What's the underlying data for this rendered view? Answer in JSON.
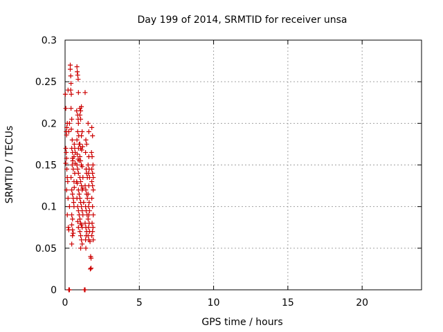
{
  "chart_data": {
    "type": "scatter",
    "title": "Day 199 of 2014, SRMTID for receiver unsa",
    "xlabel": "GPS time / hours",
    "ylabel": "SRMTID / TECUs",
    "xlim": [
      0,
      24
    ],
    "ylim": [
      0,
      0.3
    ],
    "xticks": [
      "0",
      "5",
      "10",
      "15",
      "20"
    ],
    "yticks": [
      "0",
      "0.05",
      "0.1",
      "0.15",
      "0.2",
      "0.25",
      "0.3"
    ],
    "xtick_values": [
      0,
      5,
      10,
      15,
      20
    ],
    "ytick_values": [
      0,
      0.05,
      0.1,
      0.15,
      0.2,
      0.25,
      0.3
    ],
    "grid": true,
    "marker": "plus",
    "marker_color": "#cc0000",
    "points": [
      [
        0.02,
        0.235
      ],
      [
        0.05,
        0.218
      ],
      [
        0.08,
        0.19
      ],
      [
        0.1,
        0.186
      ],
      [
        0.12,
        0.195
      ],
      [
        0.15,
        0.2
      ],
      [
        0.05,
        0.17
      ],
      [
        0.08,
        0.165
      ],
      [
        0.1,
        0.158
      ],
      [
        0.05,
        0.152
      ],
      [
        0.12,
        0.145
      ],
      [
        0.15,
        0.135
      ],
      [
        0.18,
        0.13
      ],
      [
        0.1,
        0.12
      ],
      [
        0.2,
        0.11
      ],
      [
        0.15,
        0.09
      ],
      [
        0.22,
        0.075
      ],
      [
        0.25,
        0.072
      ],
      [
        0.3,
        0.1
      ],
      [
        0.25,
        0.19
      ],
      [
        0.3,
        0.2
      ],
      [
        0.2,
        0.24
      ],
      [
        0.35,
        0.27
      ],
      [
        0.35,
        0.265
      ],
      [
        0.38,
        0.257
      ],
      [
        0.4,
        0.248
      ],
      [
        0.38,
        0.24
      ],
      [
        0.42,
        0.235
      ],
      [
        0.4,
        0.218
      ],
      [
        0.45,
        0.205
      ],
      [
        0.42,
        0.193
      ],
      [
        0.48,
        0.18
      ],
      [
        0.45,
        0.17
      ],
      [
        0.5,
        0.165
      ],
      [
        0.5,
        0.158
      ],
      [
        0.52,
        0.155
      ],
      [
        0.48,
        0.15
      ],
      [
        0.55,
        0.145
      ],
      [
        0.4,
        0.135
      ],
      [
        0.45,
        0.12
      ],
      [
        0.5,
        0.115
      ],
      [
        0.55,
        0.11
      ],
      [
        0.58,
        0.105
      ],
      [
        0.6,
        0.1
      ],
      [
        0.45,
        0.09
      ],
      [
        0.5,
        0.085
      ],
      [
        0.45,
        0.078
      ],
      [
        0.5,
        0.072
      ],
      [
        0.55,
        0.068
      ],
      [
        0.5,
        0.065
      ],
      [
        0.45,
        0.055
      ],
      [
        0.6,
        0.13
      ],
      [
        0.62,
        0.123
      ],
      [
        0.65,
        0.14
      ],
      [
        0.68,
        0.152
      ],
      [
        0.62,
        0.175
      ],
      [
        0.65,
        0.17
      ],
      [
        0.68,
        0.165
      ],
      [
        0.6,
        0.16
      ],
      [
        0.8,
        0.268
      ],
      [
        0.82,
        0.262
      ],
      [
        0.85,
        0.258
      ],
      [
        0.88,
        0.253
      ],
      [
        0.9,
        0.237
      ],
      [
        0.78,
        0.215
      ],
      [
        0.85,
        0.21
      ],
      [
        0.88,
        0.205
      ],
      [
        0.9,
        0.2
      ],
      [
        0.85,
        0.19
      ],
      [
        0.8,
        0.18
      ],
      [
        0.92,
        0.185
      ],
      [
        0.95,
        0.175
      ],
      [
        0.9,
        0.17
      ],
      [
        0.82,
        0.163
      ],
      [
        0.88,
        0.157
      ],
      [
        0.95,
        0.155
      ],
      [
        0.8,
        0.15
      ],
      [
        0.85,
        0.145
      ],
      [
        0.9,
        0.14
      ],
      [
        0.78,
        0.13
      ],
      [
        0.82,
        0.128
      ],
      [
        0.9,
        0.12
      ],
      [
        0.95,
        0.115
      ],
      [
        0.8,
        0.11
      ],
      [
        0.85,
        0.1
      ],
      [
        0.9,
        0.095
      ],
      [
        0.95,
        0.09
      ],
      [
        0.85,
        0.082
      ],
      [
        0.9,
        0.075
      ],
      [
        1.0,
        0.218
      ],
      [
        1.05,
        0.215
      ],
      [
        1.1,
        0.22
      ],
      [
        1.0,
        0.21
      ],
      [
        1.05,
        0.205
      ],
      [
        1.1,
        0.185
      ],
      [
        1.15,
        0.19
      ],
      [
        1.0,
        0.175
      ],
      [
        1.05,
        0.17
      ],
      [
        1.12,
        0.168
      ],
      [
        1.18,
        0.172
      ],
      [
        1.0,
        0.16
      ],
      [
        1.05,
        0.155
      ],
      [
        1.1,
        0.15
      ],
      [
        1.15,
        0.148
      ],
      [
        1.0,
        0.135
      ],
      [
        1.05,
        0.13
      ],
      [
        1.1,
        0.125
      ],
      [
        1.15,
        0.12
      ],
      [
        1.2,
        0.122
      ],
      [
        1.0,
        0.11
      ],
      [
        1.05,
        0.105
      ],
      [
        1.1,
        0.1
      ],
      [
        1.15,
        0.095
      ],
      [
        1.2,
        0.09
      ],
      [
        1.0,
        0.085
      ],
      [
        1.05,
        0.08
      ],
      [
        1.1,
        0.078
      ],
      [
        1.15,
        0.075
      ],
      [
        1.0,
        0.07
      ],
      [
        1.05,
        0.065
      ],
      [
        1.1,
        0.06
      ],
      [
        1.15,
        0.055
      ],
      [
        1.05,
        0.05
      ],
      [
        1.2,
        0.135
      ],
      [
        1.25,
        0.105
      ],
      [
        1.35,
        0.237
      ],
      [
        1.4,
        0.18
      ],
      [
        1.45,
        0.175
      ],
      [
        1.38,
        0.165
      ],
      [
        1.42,
        0.145
      ],
      [
        1.45,
        0.14
      ],
      [
        1.5,
        0.135
      ],
      [
        1.35,
        0.125
      ],
      [
        1.4,
        0.12
      ],
      [
        1.45,
        0.115
      ],
      [
        1.5,
        0.11
      ],
      [
        1.38,
        0.1
      ],
      [
        1.42,
        0.095
      ],
      [
        1.48,
        0.09
      ],
      [
        1.35,
        0.08
      ],
      [
        1.4,
        0.075
      ],
      [
        1.45,
        0.07
      ],
      [
        1.42,
        0.065
      ],
      [
        1.38,
        0.06
      ],
      [
        1.4,
        0.05
      ],
      [
        1.55,
        0.2
      ],
      [
        1.6,
        0.19
      ],
      [
        1.6,
        0.16
      ],
      [
        1.55,
        0.15
      ],
      [
        1.62,
        0.145
      ],
      [
        1.58,
        0.14
      ],
      [
        1.65,
        0.135
      ],
      [
        1.6,
        0.125
      ],
      [
        1.55,
        0.115
      ],
      [
        1.62,
        0.105
      ],
      [
        1.58,
        0.1
      ],
      [
        1.65,
        0.095
      ],
      [
        1.6,
        0.09
      ],
      [
        1.55,
        0.085
      ],
      [
        1.62,
        0.08
      ],
      [
        1.58,
        0.075
      ],
      [
        1.65,
        0.07
      ],
      [
        1.55,
        0.065
      ],
      [
        1.6,
        0.06
      ],
      [
        1.68,
        0.058
      ],
      [
        1.72,
        0.04
      ],
      [
        1.75,
        0.038
      ],
      [
        1.7,
        0.025
      ],
      [
        1.75,
        0.026
      ],
      [
        1.8,
        0.195
      ],
      [
        1.85,
        0.185
      ],
      [
        1.78,
        0.165
      ],
      [
        1.82,
        0.16
      ],
      [
        1.88,
        0.15
      ],
      [
        1.8,
        0.145
      ],
      [
        1.85,
        0.14
      ],
      [
        1.9,
        0.135
      ],
      [
        1.8,
        0.13
      ],
      [
        1.85,
        0.125
      ],
      [
        1.9,
        0.12
      ],
      [
        1.8,
        0.11
      ],
      [
        1.85,
        0.1
      ],
      [
        1.9,
        0.09
      ],
      [
        1.82,
        0.08
      ],
      [
        1.88,
        0.075
      ],
      [
        1.85,
        0.07
      ],
      [
        1.8,
        0.065
      ],
      [
        1.9,
        0.06
      ],
      [
        0.25,
        0.0
      ],
      [
        0.3,
        0.0
      ],
      [
        1.3,
        0.0
      ],
      [
        1.35,
        0.0
      ]
    ]
  }
}
